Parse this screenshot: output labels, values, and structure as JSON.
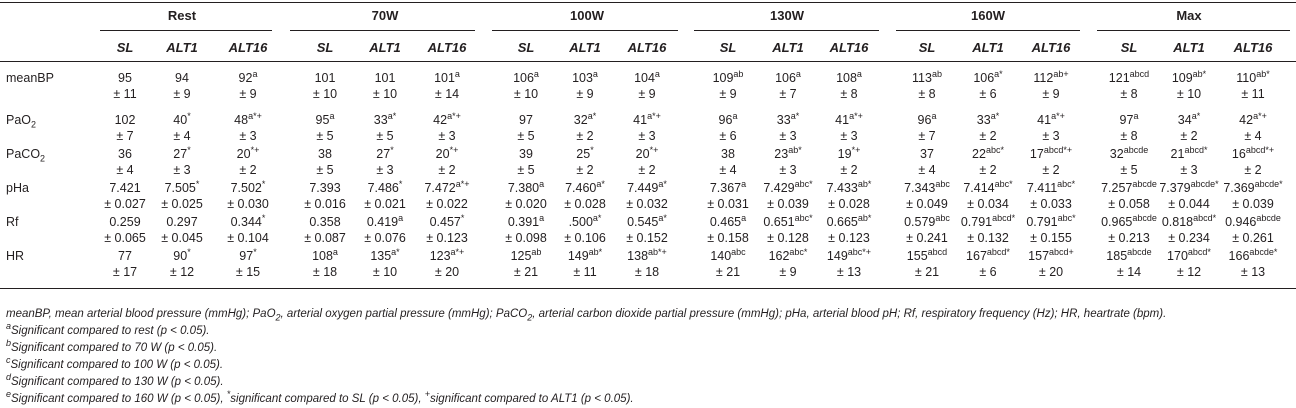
{
  "groups": [
    "Rest",
    "70W",
    "100W",
    "130W",
    "160W",
    "Max"
  ],
  "subheaders": [
    "SL",
    "ALT1",
    "ALT16"
  ],
  "rows": [
    {
      "label": "meanBP",
      "label_sub": "",
      "cells": [
        [
          "95",
          "",
          "± 11"
        ],
        [
          "94",
          "",
          "± 9"
        ],
        [
          "92",
          "a",
          "± 9"
        ],
        [
          "101",
          "",
          "± 10"
        ],
        [
          "101",
          "",
          "± 10"
        ],
        [
          "101",
          "a",
          "± 14"
        ],
        [
          "106",
          "a",
          "± 10"
        ],
        [
          "103",
          "a",
          "± 9"
        ],
        [
          "104",
          "a",
          "± 9"
        ],
        [
          "109",
          "ab",
          "± 9"
        ],
        [
          "106",
          "a",
          "± 7"
        ],
        [
          "108",
          "a",
          "± 8"
        ],
        [
          "113",
          "ab",
          "± 8"
        ],
        [
          "106",
          "a*",
          "± 6"
        ],
        [
          "112",
          "ab+",
          "± 9"
        ],
        [
          "121",
          "abcd",
          "± 8"
        ],
        [
          "109",
          "ab*",
          "± 10"
        ],
        [
          "110",
          "ab*",
          "± 11"
        ]
      ]
    },
    {
      "label": "PaO",
      "label_sub": "2",
      "cells": [
        [
          "102",
          "",
          "± 7"
        ],
        [
          "40",
          "*",
          "± 4"
        ],
        [
          "48",
          "a*+",
          "± 3"
        ],
        [
          "95",
          "a",
          "± 5"
        ],
        [
          "33",
          "a*",
          "± 5"
        ],
        [
          "42",
          "a*+",
          "± 3"
        ],
        [
          "97",
          "",
          "± 5"
        ],
        [
          "32",
          "a*",
          "± 2"
        ],
        [
          "41",
          "a*+",
          "± 3"
        ],
        [
          "96",
          "a",
          "± 6"
        ],
        [
          "33",
          "a*",
          "± 3"
        ],
        [
          "41",
          "a*+",
          "± 3"
        ],
        [
          "96",
          "a",
          "± 7"
        ],
        [
          "33",
          "a*",
          "± 2"
        ],
        [
          "41",
          "a*+",
          "± 3"
        ],
        [
          "97",
          "a",
          "± 8"
        ],
        [
          "34",
          "a*",
          "± 2"
        ],
        [
          "42",
          "a*+",
          "± 4"
        ]
      ]
    },
    {
      "label": "PaCO",
      "label_sub": "2",
      "cells": [
        [
          "36",
          "",
          "± 4"
        ],
        [
          "27",
          "*",
          "± 3"
        ],
        [
          "20",
          "*+",
          "± 2"
        ],
        [
          "38",
          "",
          "± 5"
        ],
        [
          "27",
          "*",
          "± 3"
        ],
        [
          "20",
          "*+",
          "± 2"
        ],
        [
          "39",
          "",
          "± 5"
        ],
        [
          "25",
          "*",
          "± 2"
        ],
        [
          "20",
          "*+",
          "± 2"
        ],
        [
          "38",
          "",
          "± 4"
        ],
        [
          "23",
          "ab*",
          "± 3"
        ],
        [
          "19",
          "*+",
          "± 2"
        ],
        [
          "37",
          "",
          "± 4"
        ],
        [
          "22",
          "abc*",
          "± 2"
        ],
        [
          "17",
          "abcd*+",
          "± 2"
        ],
        [
          "32",
          "abcde",
          "± 5"
        ],
        [
          "21",
          "abcd*",
          "± 3"
        ],
        [
          "16",
          "abcd*+",
          "± 2"
        ]
      ]
    },
    {
      "label": "pHa",
      "label_sub": "",
      "cells": [
        [
          "7.421",
          "",
          "± 0.027"
        ],
        [
          "7.505",
          "*",
          "± 0.025"
        ],
        [
          "7.502",
          "*",
          "± 0.030"
        ],
        [
          "7.393",
          "",
          "± 0.016"
        ],
        [
          "7.486",
          "*",
          "± 0.021"
        ],
        [
          "7.472",
          "a*+",
          "± 0.022"
        ],
        [
          "7.380",
          "a",
          "± 0.020"
        ],
        [
          "7.460",
          "a*",
          "± 0.028"
        ],
        [
          "7.449",
          "a*",
          "± 0.032"
        ],
        [
          "7.367",
          "a",
          "± 0.031"
        ],
        [
          "7.429",
          "abc*",
          "± 0.039"
        ],
        [
          "7.433",
          "ab*",
          "± 0.028"
        ],
        [
          "7.343",
          "abc",
          "± 0.049"
        ],
        [
          "7.414",
          "abc*",
          "± 0.034"
        ],
        [
          "7.411",
          "abc*",
          "± 0.033"
        ],
        [
          "7.257",
          "abcde",
          "± 0.058"
        ],
        [
          "7.379",
          "abcde*",
          "± 0.044"
        ],
        [
          "7.369",
          "abcde*",
          "± 0.039"
        ]
      ]
    },
    {
      "label": "Rf",
      "label_sub": "",
      "cells": [
        [
          "0.259",
          "",
          "± 0.065"
        ],
        [
          "0.297",
          "",
          "± 0.045"
        ],
        [
          "0.344",
          "*",
          "± 0.104"
        ],
        [
          "0.358",
          "",
          "± 0.087"
        ],
        [
          "0.419",
          "a",
          "± 0.076"
        ],
        [
          "0.457",
          "*",
          "± 0.123"
        ],
        [
          "0.391",
          "a",
          "± 0.098"
        ],
        [
          ".500",
          "a*",
          "± 0.106"
        ],
        [
          "0.545",
          "a*",
          "± 0.152"
        ],
        [
          "0.465",
          "a",
          "± 0.158"
        ],
        [
          "0.651",
          "abc*",
          "± 0.128"
        ],
        [
          "0.665",
          "ab*",
          "± 0.123"
        ],
        [
          "0.579",
          "abc",
          "± 0.241"
        ],
        [
          "0.791",
          "abcd*",
          "± 0.132"
        ],
        [
          "0.791",
          "abc*",
          "± 0.155"
        ],
        [
          "0.965",
          "abcde",
          "± 0.213"
        ],
        [
          "0.818",
          "abcd*",
          "± 0.234"
        ],
        [
          "0.946",
          "abcde",
          "± 0.261"
        ]
      ]
    },
    {
      "label": "HR",
      "label_sub": "",
      "cells": [
        [
          "77",
          "",
          "± 17"
        ],
        [
          "90",
          "*",
          "± 12"
        ],
        [
          "97",
          "*",
          "± 15"
        ],
        [
          "108",
          "a",
          "± 18"
        ],
        [
          "135",
          "a*",
          "± 10"
        ],
        [
          "123",
          "a*+",
          "± 20"
        ],
        [
          "125",
          "ab",
          "± 21"
        ],
        [
          "149",
          "ab*",
          "± 11"
        ],
        [
          "138",
          "ab*+",
          "± 18"
        ],
        [
          "140",
          "abc",
          "± 21"
        ],
        [
          "162",
          "abc*",
          "± 9"
        ],
        [
          "149",
          "abc*+",
          "± 13"
        ],
        [
          "155",
          "abcd",
          "± 21"
        ],
        [
          "167",
          "abcd*",
          "± 6"
        ],
        [
          "157",
          "abcd+",
          "± 20"
        ],
        [
          "185",
          "abcde",
          "± 14"
        ],
        [
          "170",
          "abcd*",
          "± 12"
        ],
        [
          "166",
          "abcde*",
          "± 13"
        ]
      ]
    }
  ],
  "footnotes": {
    "abbr": [
      {
        "t": "meanBP, mean arterial blood pressure (mmHg); PaO"
      },
      {
        "sub": "2"
      },
      {
        "t": ", arterial oxygen partial pressure (mmHg); PaCO"
      },
      {
        "sub": "2"
      },
      {
        "t": ", arterial carbon dioxide partial pressure (mmHg); pHa, arterial blood pH; Rf, respiratory frequency (Hz); HR, heartrate (bpm)."
      }
    ],
    "lines": [
      [
        {
          "sup": "a"
        },
        {
          "t": "Significant compared to rest (p < 0.05)."
        }
      ],
      [
        {
          "sup": "b"
        },
        {
          "t": "Significant compared to 70 W (p < 0.05)."
        }
      ],
      [
        {
          "sup": "c"
        },
        {
          "t": "Significant compared to 100 W (p < 0.05)."
        }
      ],
      [
        {
          "sup": "d"
        },
        {
          "t": "Significant compared to 130 W (p < 0.05)."
        }
      ],
      [
        {
          "sup": "e"
        },
        {
          "t": "Significant compared to 160 W (p < 0.05), "
        },
        {
          "sup": "*"
        },
        {
          "t": "significant compared to SL (p < 0.05), "
        },
        {
          "sup": "+"
        },
        {
          "t": "significant compared to ALT1 (p < 0.05)."
        }
      ]
    ]
  }
}
